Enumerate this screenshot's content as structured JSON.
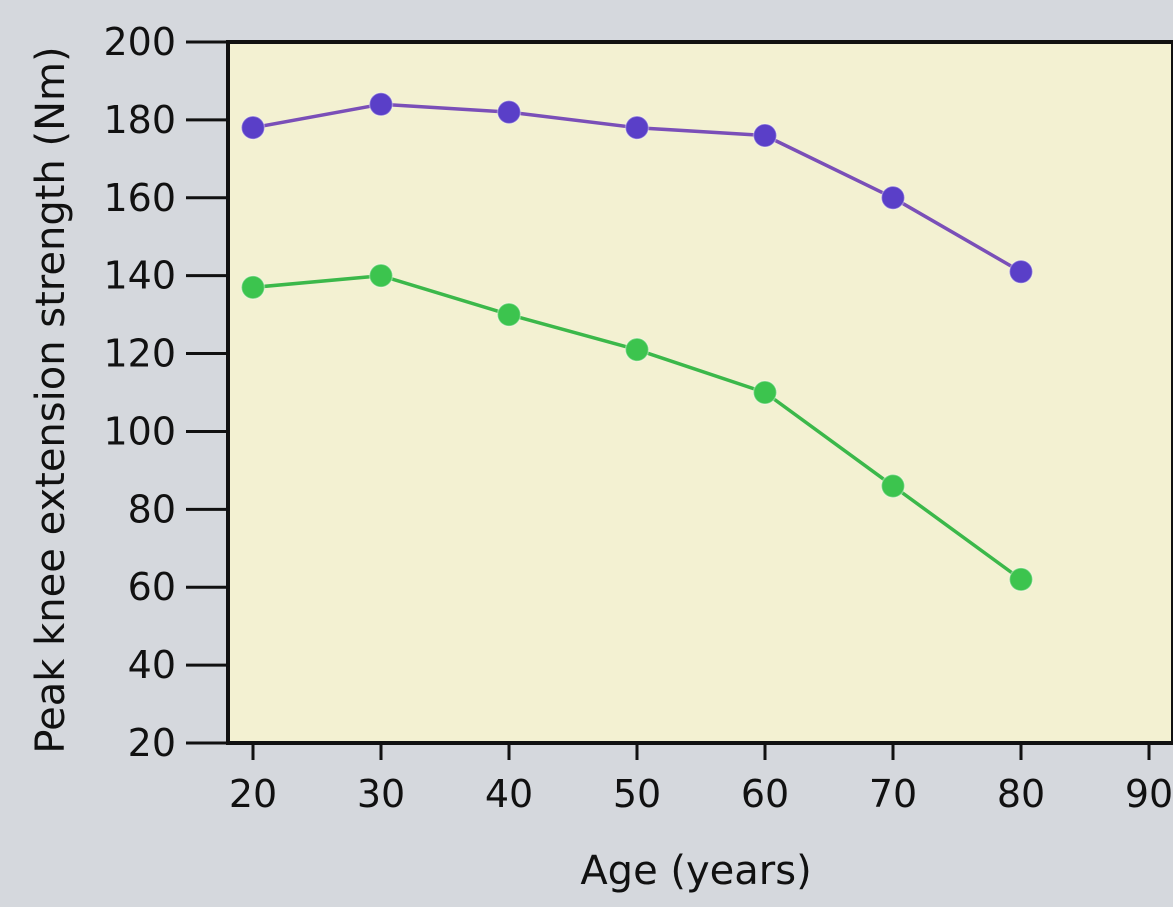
{
  "chart_data": {
    "type": "line",
    "title": "",
    "xlabel": "Age (years)",
    "ylabel": "Peak knee extension strength (Nm)",
    "x": [
      20,
      30,
      40,
      50,
      60,
      70,
      80
    ],
    "xticks": [
      "20",
      "30",
      "40",
      "50",
      "60",
      "70",
      "80",
      "90"
    ],
    "xlim": [
      20,
      90
    ],
    "yticks": [
      "20",
      "40",
      "60",
      "80",
      "100",
      "120",
      "140",
      "160",
      "180",
      "200"
    ],
    "ylim": [
      20,
      200
    ],
    "grid": false,
    "series": [
      {
        "values": [
          178,
          184,
          182,
          178,
          176,
          160,
          141
        ],
        "line_color": "#7a4fb8",
        "marker_color": "#5a3fc8"
      },
      {
        "values": [
          137,
          140,
          130,
          121,
          110,
          86,
          62
        ],
        "line_color": "#3bb84a",
        "marker_color": "#3cc44e"
      }
    ],
    "plot_background": "#f3f1d2",
    "page_background": "#d5d8dd"
  }
}
